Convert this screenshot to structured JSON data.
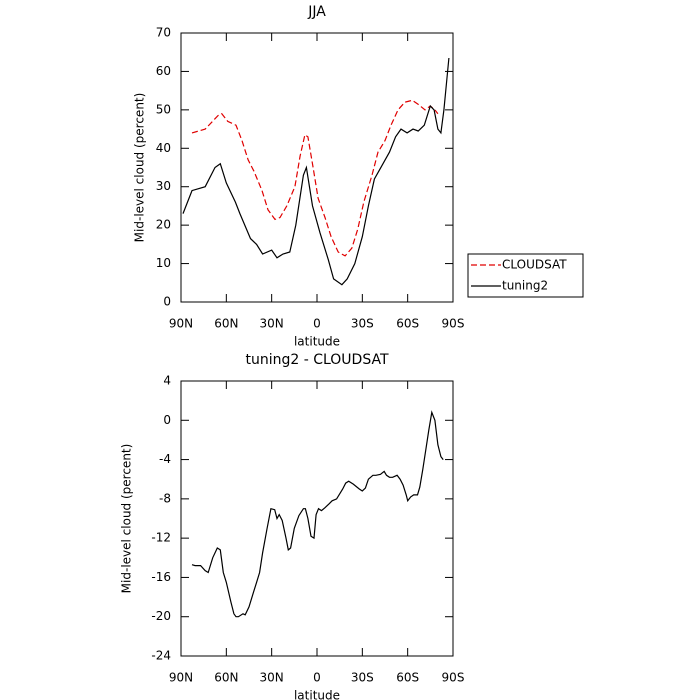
{
  "chart_data": [
    {
      "type": "line",
      "title": "JJA",
      "xlabel": "latitude",
      "ylabel": "Mid-level cloud (percent)",
      "xlim": [
        90,
        -90
      ],
      "ylim": [
        0,
        70
      ],
      "xticks": [
        {
          "value": 90,
          "label": "90N"
        },
        {
          "value": 60,
          "label": "60N"
        },
        {
          "value": 30,
          "label": "30N"
        },
        0,
        {
          "value": -30,
          "label": "30S"
        },
        {
          "value": -60,
          "label": "60S"
        },
        {
          "value": -90,
          "label": "90S"
        }
      ],
      "yticks": [
        0,
        10,
        20,
        30,
        40,
        50,
        60,
        70
      ],
      "legend": "right",
      "series": [
        {
          "name": "CLOUDSAT",
          "color": "#e00000",
          "line_style": "dashed",
          "x": [
            82.7,
            74,
            65.5,
            63,
            59,
            53.6,
            49.6,
            45.6,
            41.7,
            36.4,
            32.4,
            27.8,
            24.5,
            20,
            14.6,
            11.2,
            8,
            6,
            2.6,
            -0.7,
            -5.3,
            -9.3,
            -14,
            -18.6,
            -23,
            -27,
            -31,
            -36.4,
            -40.4,
            -45,
            -49,
            -53.6,
            -58.2,
            -63,
            -66.8,
            -71.5,
            -75,
            -78,
            -80
          ],
          "values": [
            44,
            45,
            48.5,
            49,
            47,
            46,
            42,
            37,
            34,
            29,
            24,
            21.5,
            22,
            25,
            30,
            38,
            43.5,
            43,
            35,
            27,
            22,
            17,
            13,
            12,
            14,
            19,
            26,
            33,
            39,
            42,
            46,
            50,
            52,
            52.5,
            51.5,
            50,
            51,
            50,
            49
          ]
        },
        {
          "name": "tuning2",
          "color": "#000000",
          "line_style": "solid",
          "x": [
            88.7,
            82.7,
            74,
            67.5,
            64,
            60,
            54,
            51,
            44,
            40,
            36,
            30,
            26.5,
            22.5,
            18,
            14,
            9,
            7,
            3,
            -2,
            -7.5,
            -11,
            -16.5,
            -20,
            -25,
            -30,
            -34,
            -38,
            -43.7,
            -48,
            -52,
            -55.6,
            -59.6,
            -63.5,
            -67,
            -71,
            -75,
            -77.5,
            -80,
            -82,
            -84,
            -87.3
          ],
          "values": [
            23,
            29,
            30,
            35,
            36,
            31,
            26,
            23,
            16.5,
            15,
            12.5,
            13.5,
            11.5,
            12.5,
            13,
            20,
            33,
            35,
            25,
            18,
            11,
            6,
            4.5,
            6,
            10,
            17,
            25,
            32,
            36,
            39,
            43,
            45,
            44,
            45,
            44.5,
            46,
            51,
            50,
            45,
            44,
            50,
            63.5
          ]
        }
      ]
    },
    {
      "type": "line",
      "title": "tuning2 - CLOUDSAT",
      "xlabel": "latitude",
      "ylabel": "Mid-level cloud (percent)",
      "xlim": [
        90,
        -90
      ],
      "ylim": [
        -24,
        4
      ],
      "xticks": [
        {
          "value": 90,
          "label": "90N"
        },
        {
          "value": 60,
          "label": "60N"
        },
        {
          "value": 30,
          "label": "30N"
        },
        0,
        {
          "value": -30,
          "label": "30S"
        },
        {
          "value": -60,
          "label": "60S"
        },
        {
          "value": -90,
          "label": "90S"
        }
      ],
      "yticks": [
        4,
        0,
        -4,
        -8,
        -12,
        -16,
        -20,
        -24
      ],
      "series": [
        {
          "color": "#000000",
          "line_style": "solid",
          "x": [
            82.7,
            80.7,
            77,
            74,
            72,
            69,
            66,
            64,
            62,
            60,
            57,
            55,
            53.6,
            52,
            49,
            47.5,
            45,
            42,
            40,
            38,
            36,
            33,
            30.5,
            28,
            26.5,
            25,
            23,
            20.5,
            19,
            17.5,
            15,
            12,
            9,
            7.7,
            6,
            4,
            2,
            0.6,
            -1,
            -3,
            -5.3,
            -8,
            -10,
            -13,
            -17,
            -19,
            -21,
            -24,
            -28,
            -30,
            -32,
            -34,
            -37,
            -39,
            -42,
            -44.5,
            -46,
            -48,
            -50,
            -53,
            -55,
            -57,
            -59,
            -60,
            -62,
            -64,
            -66.5,
            -68,
            -70,
            -72,
            -74,
            -76,
            -78,
            -80,
            -82,
            -83.5
          ],
          "values": [
            -14.7,
            -14.8,
            -14.8,
            -15.3,
            -15.5,
            -14,
            -13,
            -13.2,
            -15.5,
            -16.5,
            -18.5,
            -19.7,
            -20,
            -20,
            -19.7,
            -19.8,
            -19,
            -17.5,
            -16.5,
            -15.5,
            -13.5,
            -11,
            -9,
            -9.1,
            -10,
            -9.6,
            -10.2,
            -12,
            -13.2,
            -13,
            -11,
            -9.7,
            -9,
            -9,
            -10,
            -11.8,
            -12,
            -9.6,
            -9,
            -9.2,
            -8.9,
            -8.5,
            -8.2,
            -8,
            -7,
            -6.4,
            -6.2,
            -6.5,
            -7,
            -7.2,
            -6.9,
            -6,
            -5.6,
            -5.6,
            -5.5,
            -5.2,
            -5.6,
            -5.8,
            -5.8,
            -5.6,
            -6,
            -6.6,
            -7.6,
            -8.2,
            -7.8,
            -7.6,
            -7.6,
            -6.8,
            -5,
            -3,
            -1,
            0.8,
            0,
            -2.5,
            -3.7,
            -4
          ]
        }
      ]
    }
  ]
}
